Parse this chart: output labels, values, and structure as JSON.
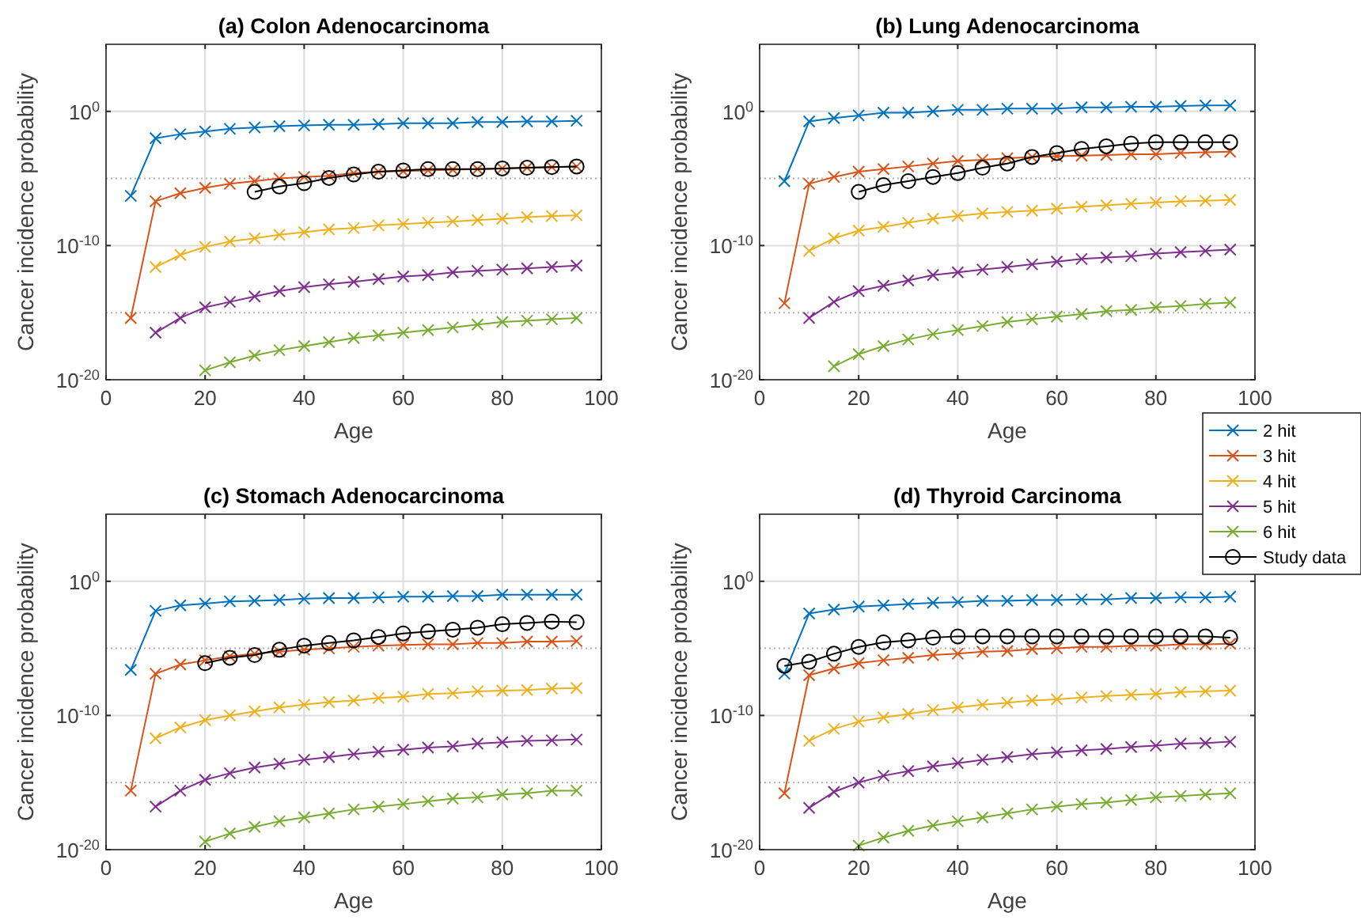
{
  "chart_data": [
    {
      "type": "line",
      "title": "(a) Colon Adenocarcinoma",
      "xlabel": "Age",
      "ylabel": "Cancer incidence probability",
      "log": "y",
      "grid": true,
      "xlim": [
        0,
        100
      ],
      "xticks": [
        0,
        20,
        40,
        60,
        80,
        100
      ],
      "ylim": [
        1e-20,
        100000.0
      ],
      "yticks": [
        {
          "value": 1e-20,
          "label": "10$^{-20}$"
        },
        {
          "value": 1e-15,
          "label": null
        },
        {
          "value": 1e-10,
          "label": "10$^{-10}$"
        },
        {
          "value": 1e-05,
          "label": null
        },
        {
          "value": 1,
          "label": "10$^{0}$"
        }
      ],
      "x": [
        5,
        10,
        15,
        20,
        25,
        30,
        35,
        40,
        45,
        50,
        55,
        60,
        65,
        70,
        75,
        80,
        85,
        90,
        95
      ],
      "series": [
        {
          "color": "#0072bd",
          "marker": "cross",
          "values": [
            5e-07,
            0.01,
            0.02,
            0.032,
            0.05,
            0.063,
            0.079,
            0.089,
            0.1,
            0.1,
            0.11,
            0.13,
            0.13,
            0.13,
            0.16,
            0.16,
            0.18,
            0.18,
            0.2
          ]
        },
        {
          "color": "#d95319",
          "marker": "cross",
          "values": [
            4e-16,
            2e-07,
            7.9e-07,
            2e-06,
            4e-06,
            6.3e-06,
            1e-05,
            1.3e-05,
            1.6e-05,
            2.5e-05,
            3.2e-05,
            3.5e-05,
            4e-05,
            4.5e-05,
            5e-05,
            5.6e-05,
            6.3e-05,
            7.1e-05,
            7.9e-05
          ]
        },
        {
          "color": "#edb120",
          "marker": "cross",
          "values": [
            null,
            2.5e-12,
            2e-11,
            7.9e-11,
            2e-10,
            3.5e-10,
            6.3e-10,
            1e-09,
            1.6e-09,
            2e-09,
            3.2e-09,
            4e-09,
            5e-09,
            6.3e-09,
            7.9e-09,
            1e-08,
            1.3e-08,
            1.6e-08,
            1.8e-08
          ]
        },
        {
          "color": "#7e2f8e",
          "marker": "cross",
          "values": [
            null,
            3.2e-17,
            4e-16,
            2.5e-15,
            6.3e-15,
            1.6e-14,
            4e-14,
            7.9e-14,
            1.3e-13,
            2e-13,
            3.2e-13,
            5e-13,
            6.3e-13,
            1e-12,
            1.3e-12,
            1.6e-12,
            2e-12,
            2.5e-12,
            3.2e-12
          ]
        },
        {
          "color": "#77ac30",
          "marker": "cross",
          "values": [
            null,
            null,
            null,
            5e-20,
            2e-19,
            6.3e-19,
            1.6e-18,
            3.2e-18,
            6.3e-18,
            1.3e-17,
            2e-17,
            3.2e-17,
            5e-17,
            7.9e-17,
            1.3e-16,
            2e-16,
            2.5e-16,
            3.2e-16,
            4e-16
          ]
        },
        {
          "color": "#000000",
          "marker": "circle",
          "x": [
            30,
            35,
            40,
            45,
            50,
            55,
            60,
            65,
            70,
            75,
            80,
            85,
            90,
            95
          ],
          "values": [
            1e-06,
            2.5e-06,
            4.5e-06,
            1.1e-05,
            2e-05,
            3.2e-05,
            4e-05,
            5e-05,
            5e-05,
            5e-05,
            5.6e-05,
            6.3e-05,
            7.1e-05,
            7.9e-05
          ]
        }
      ]
    },
    {
      "type": "line",
      "title": "(b) Lung Adenocarcinoma",
      "xlabel": "Age",
      "ylabel": "Cancer incidence probability",
      "log": "y",
      "grid": true,
      "legend": "bottom right",
      "xlim": [
        0,
        100
      ],
      "xticks": [
        0,
        20,
        40,
        60,
        80,
        100
      ],
      "ylim": [
        1e-20,
        100000.0
      ],
      "yticks": [
        {
          "value": 1e-20,
          "label": "10$^{-20}$"
        },
        {
          "value": 1e-15,
          "label": null
        },
        {
          "value": 1e-10,
          "label": "10$^{-10}$"
        },
        {
          "value": 1e-05,
          "label": null
        },
        {
          "value": 1,
          "label": "10$^{0}$"
        }
      ],
      "x": [
        5,
        10,
        15,
        20,
        25,
        30,
        35,
        40,
        45,
        50,
        55,
        60,
        65,
        70,
        75,
        80,
        85,
        90,
        95
      ],
      "series": [
        {
          "name": "2 hit",
          "color": "#0072bd",
          "marker": "cross",
          "values": [
            6.3e-06,
            0.18,
            0.32,
            0.5,
            0.79,
            0.79,
            1,
            1.3,
            1.3,
            1.6,
            1.6,
            1.6,
            2,
            2,
            2.2,
            2.2,
            2.5,
            2.8,
            2.8
          ]
        },
        {
          "name": "3 hit",
          "color": "#d95319",
          "marker": "cross",
          "values": [
            5e-15,
            4e-06,
            1.3e-05,
            3.2e-05,
            5e-05,
            7.9e-05,
            0.00013,
            0.0002,
            0.00025,
            0.00032,
            0.0004,
            0.00045,
            0.0005,
            0.00056,
            0.00063,
            0.00063,
            0.00079,
            0.00089,
            0.001
          ]
        },
        {
          "name": "4 hit",
          "color": "#edb120",
          "marker": "cross",
          "values": [
            null,
            4e-11,
            3.5e-10,
            1.3e-09,
            2.5e-09,
            5e-09,
            1e-08,
            1.6e-08,
            2.5e-08,
            3.2e-08,
            4e-08,
            5.6e-08,
            7.9e-08,
            1e-07,
            1.3e-07,
            1.6e-07,
            2e-07,
            2.2e-07,
            2.5e-07
          ]
        },
        {
          "name": "5 hit",
          "color": "#7e2f8e",
          "marker": "cross",
          "values": [
            null,
            4e-16,
            6.3e-15,
            4e-14,
            1e-13,
            2.5e-13,
            6.3e-13,
            1e-12,
            1.6e-12,
            2.5e-12,
            4e-12,
            6.3e-12,
            1e-11,
            1.3e-11,
            1.6e-11,
            2.5e-11,
            3.2e-11,
            4e-11,
            5e-11
          ]
        },
        {
          "name": "6 hit",
          "color": "#77ac30",
          "marker": "cross",
          "values": [
            null,
            null,
            1e-19,
            7.9e-19,
            3.2e-18,
            1e-17,
            2.5e-17,
            5e-17,
            1e-16,
            2e-16,
            3.2e-16,
            5e-16,
            7.9e-16,
            1.3e-15,
            1.6e-15,
            2.5e-15,
            3.2e-15,
            4.5e-15,
            5.6e-15
          ]
        },
        {
          "name": "Study data",
          "color": "#000000",
          "marker": "circle",
          "x": [
            20,
            25,
            30,
            35,
            40,
            45,
            50,
            55,
            60,
            65,
            70,
            75,
            80,
            85,
            90,
            95
          ],
          "values": [
            1e-06,
            3.2e-06,
            6.3e-06,
            1.3e-05,
            2.5e-05,
            6.3e-05,
            0.00013,
            0.0004,
            0.00079,
            0.0016,
            0.0025,
            0.004,
            0.005,
            0.005,
            0.005,
            0.005
          ]
        }
      ]
    },
    {
      "type": "line",
      "title": "(c) Stomach Adenocarcinoma",
      "xlabel": "Age",
      "ylabel": "Cancer incidence probability",
      "log": "y",
      "grid": true,
      "xlim": [
        0,
        100
      ],
      "xticks": [
        0,
        20,
        40,
        60,
        80,
        100
      ],
      "ylim": [
        1e-20,
        100000.0
      ],
      "yticks": [
        {
          "value": 1e-20,
          "label": "10$^{-20}$"
        },
        {
          "value": 1e-15,
          "label": null
        },
        {
          "value": 1e-10,
          "label": "10$^{-10}$"
        },
        {
          "value": 1e-05,
          "label": null
        },
        {
          "value": 1,
          "label": "10$^{0}$"
        }
      ],
      "x": [
        5,
        10,
        15,
        20,
        25,
        30,
        35,
        40,
        45,
        50,
        55,
        60,
        65,
        70,
        75,
        80,
        85,
        90,
        95
      ],
      "series": [
        {
          "color": "#0072bd",
          "marker": "cross",
          "values": [
            2.5e-07,
            0.0063,
            0.016,
            0.022,
            0.032,
            0.035,
            0.04,
            0.05,
            0.056,
            0.056,
            0.063,
            0.071,
            0.071,
            0.079,
            0.079,
            0.1,
            0.1,
            0.1,
            0.1
          ]
        },
        {
          "color": "#d95319",
          "marker": "cross",
          "values": [
            2.5e-16,
            1.3e-07,
            6.3e-07,
            1.3e-06,
            2.5e-06,
            4e-06,
            5.6e-06,
            7.9e-06,
            1e-05,
            1.3e-05,
            1.6e-05,
            1.8e-05,
            2e-05,
            2e-05,
            2.5e-05,
            2.5e-05,
            3.2e-05,
            3.2e-05,
            3.5e-05
          ]
        },
        {
          "color": "#edb120",
          "marker": "cross",
          "values": [
            null,
            2e-12,
            1.3e-11,
            4.5e-11,
            1e-10,
            2e-10,
            4e-10,
            6.3e-10,
            1e-09,
            1.3e-09,
            2e-09,
            2.5e-09,
            4e-09,
            4.5e-09,
            6.3e-09,
            7.1e-09,
            7.9e-09,
            1e-08,
            1.1e-08
          ]
        },
        {
          "color": "#7e2f8e",
          "marker": "cross",
          "values": [
            null,
            1.6e-17,
            2.5e-16,
            1.6e-15,
            5e-15,
            1.3e-14,
            2.5e-14,
            5e-14,
            7.9e-14,
            1.3e-13,
            2e-13,
            2.8e-13,
            4e-13,
            5e-13,
            7.9e-13,
            1e-12,
            1.3e-12,
            1.4e-12,
            1.6e-12
          ]
        },
        {
          "color": "#77ac30",
          "marker": "cross",
          "values": [
            null,
            null,
            null,
            4e-20,
            1.6e-19,
            5e-19,
            1.3e-18,
            2.5e-18,
            5e-18,
            1e-17,
            1.6e-17,
            2.5e-17,
            4e-17,
            6.3e-17,
            7.9e-17,
            1.3e-16,
            1.6e-16,
            2.5e-16,
            2.5e-16
          ]
        },
        {
          "color": "#000000",
          "marker": "circle",
          "x": [
            20,
            25,
            30,
            35,
            40,
            45,
            50,
            55,
            60,
            65,
            70,
            75,
            80,
            85,
            90,
            95
          ],
          "values": [
            7.9e-07,
            2e-06,
            3.2e-06,
            7.9e-06,
            1.6e-05,
            2.5e-05,
            4e-05,
            7.1e-05,
            0.00013,
            0.00018,
            0.00025,
            0.00035,
            0.00063,
            0.00079,
            0.001,
            0.00089
          ]
        }
      ]
    },
    {
      "type": "line",
      "title": "(d) Thyroid Carcinoma",
      "xlabel": "Age",
      "ylabel": "Cancer incidence probability",
      "log": "y",
      "grid": true,
      "xlim": [
        0,
        100
      ],
      "xticks": [
        0,
        20,
        40,
        60,
        80,
        100
      ],
      "ylim": [
        1e-20,
        100000.0
      ],
      "yticks": [
        {
          "value": 1e-20,
          "label": "10$^{-20}$"
        },
        {
          "value": 1e-15,
          "label": null
        },
        {
          "value": 1e-10,
          "label": "10$^{-10}$"
        },
        {
          "value": 1e-05,
          "label": null
        },
        {
          "value": 1,
          "label": "10$^{0}$"
        }
      ],
      "x": [
        5,
        10,
        15,
        20,
        25,
        30,
        35,
        40,
        45,
        50,
        55,
        60,
        65,
        70,
        75,
        80,
        85,
        90,
        95
      ],
      "series": [
        {
          "color": "#0072bd",
          "marker": "cross",
          "values": [
            1.3e-07,
            0.004,
            0.0079,
            0.013,
            0.016,
            0.02,
            0.025,
            0.028,
            0.035,
            0.035,
            0.04,
            0.04,
            0.045,
            0.045,
            0.056,
            0.056,
            0.063,
            0.063,
            0.071
          ]
        },
        {
          "color": "#d95319",
          "marker": "cross",
          "values": [
            1.6e-16,
            1e-07,
            3.2e-07,
            7.9e-07,
            1.3e-06,
            2e-06,
            3.2e-06,
            4e-06,
            5.6e-06,
            6.3e-06,
            8.9e-06,
            1e-05,
            1.3e-05,
            1.3e-05,
            1.6e-05,
            1.6e-05,
            2e-05,
            2e-05,
            2.2e-05
          ]
        },
        {
          "color": "#edb120",
          "marker": "cross",
          "values": [
            null,
            1.3e-12,
            1e-11,
            3.5e-11,
            7.1e-11,
            1.3e-10,
            2.5e-10,
            4e-10,
            6.3e-10,
            8.9e-10,
            1.3e-09,
            1.6e-09,
            2.2e-09,
            2.8e-09,
            3.5e-09,
            4e-09,
            5.6e-09,
            6.3e-09,
            7.1e-09
          ]
        },
        {
          "color": "#7e2f8e",
          "marker": "cross",
          "values": [
            null,
            1.3e-17,
            2e-16,
            1e-15,
            3.2e-15,
            7.1e-15,
            1.6e-14,
            2.8e-14,
            5e-14,
            7.9e-14,
            1.3e-13,
            1.8e-13,
            2.5e-13,
            3.2e-13,
            4.5e-13,
            5.6e-13,
            7.9e-13,
            8.9e-13,
            1.1e-12
          ]
        },
        {
          "color": "#77ac30",
          "marker": "cross",
          "values": [
            null,
            null,
            null,
            2e-20,
            7.9e-20,
            2.5e-19,
            6.3e-19,
            1.3e-18,
            2.5e-18,
            5e-18,
            1e-17,
            1.6e-17,
            2.5e-17,
            3.2e-17,
            5e-17,
            7.9e-17,
            1e-16,
            1.3e-16,
            1.6e-16
          ]
        },
        {
          "color": "#000000",
          "marker": "circle",
          "values": [
            5e-07,
            1e-06,
            4e-06,
            1.3e-05,
            2.8e-05,
            4e-05,
            6.3e-05,
            7.9e-05,
            7.9e-05,
            7.9e-05,
            7.9e-05,
            7.9e-05,
            7.9e-05,
            7.9e-05,
            7.9e-05,
            7.9e-05,
            7.9e-05,
            7.9e-05,
            6.3e-05
          ]
        }
      ]
    }
  ]
}
